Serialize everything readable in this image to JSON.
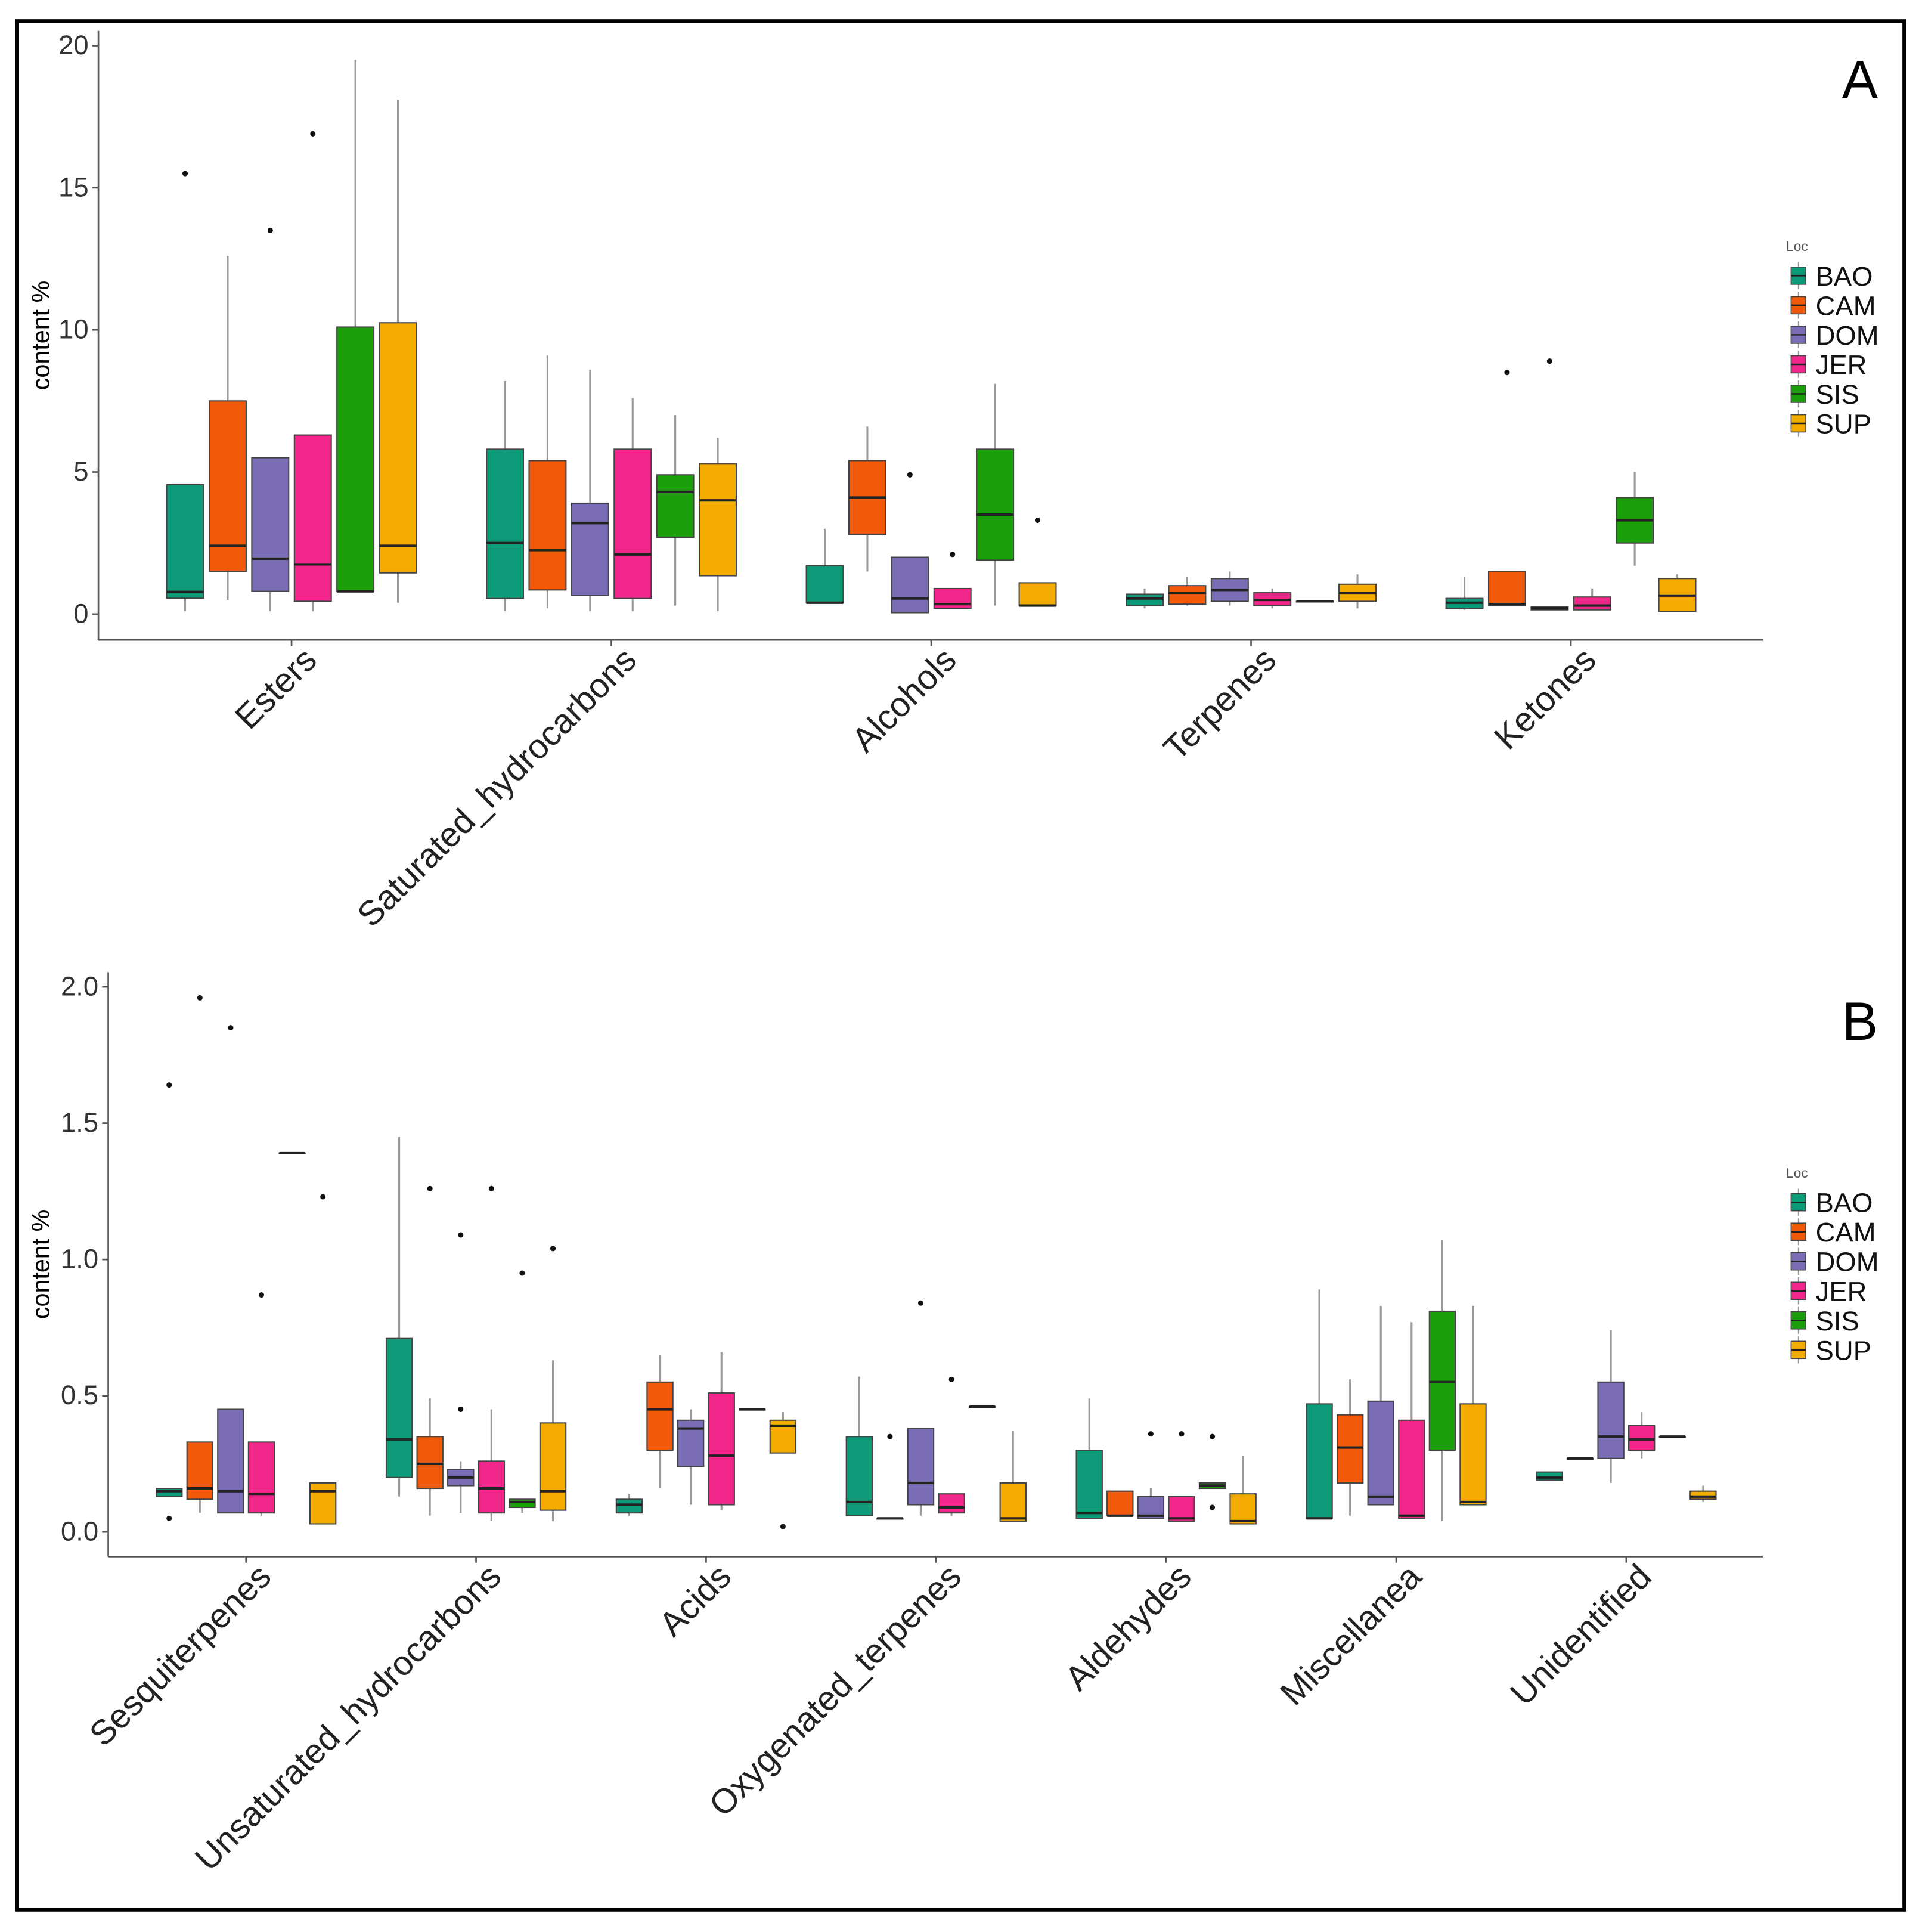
{
  "colors": {
    "BAO": "#0d9a78",
    "CAM": "#f05a0a",
    "DOM": "#7b6db5",
    "JER": "#f0268a",
    "SIS": "#1a9e0a",
    "SUP": "#f5ac00"
  },
  "chart_data": [
    {
      "type": "box",
      "panel_label": "A",
      "ylabel": "content %",
      "ylim": [
        0,
        20
      ],
      "yticks": [
        0,
        5,
        10,
        15,
        20
      ],
      "legend": {
        "title": "Loc",
        "position": "right",
        "entries": [
          "BAO",
          "CAM",
          "DOM",
          "JER",
          "SIS",
          "SUP"
        ]
      },
      "categories": [
        "Esters",
        "Saturated_hydrocarbons",
        "Alcohols",
        "Terpenes",
        "Ketones"
      ],
      "boxes": {
        "Esters": [
          [
            0.1,
            0.56,
            0.78,
            4.55,
            4.55,
            [
              15.5
            ]
          ],
          [
            0.5,
            1.5,
            2.4,
            7.5,
            12.6,
            []
          ],
          [
            0.1,
            0.8,
            1.95,
            5.5,
            5.5,
            [
              13.5
            ]
          ],
          [
            0.1,
            0.45,
            1.75,
            6.3,
            6.3,
            [
              16.9
            ]
          ],
          [
            0.8,
            0.8,
            0.8,
            10.1,
            19.5,
            []
          ],
          [
            0.4,
            1.45,
            2.4,
            10.25,
            18.1,
            []
          ]
        ],
        "Saturated_hydrocarbons": [
          [
            0.1,
            0.55,
            2.5,
            5.8,
            8.2,
            []
          ],
          [
            0.2,
            0.85,
            2.25,
            5.4,
            9.1,
            []
          ],
          [
            0.1,
            0.65,
            3.2,
            3.9,
            8.6,
            []
          ],
          [
            0.1,
            0.55,
            2.1,
            5.8,
            7.6,
            []
          ],
          [
            0.3,
            2.7,
            4.3,
            4.9,
            7.0,
            []
          ],
          [
            0.1,
            1.35,
            4.0,
            5.3,
            6.2,
            []
          ]
        ],
        "Alcohols": [
          [
            0.4,
            0.4,
            0.4,
            1.7,
            3.0,
            []
          ],
          [
            1.5,
            2.8,
            4.1,
            5.4,
            6.6,
            []
          ],
          [
            0.05,
            0.05,
            0.55,
            2.0,
            2.0,
            [
              4.9
            ]
          ],
          [
            0.2,
            0.2,
            0.35,
            0.9,
            0.9,
            [
              2.1
            ]
          ],
          [
            0.3,
            1.9,
            3.5,
            5.8,
            8.1,
            []
          ],
          [
            0.3,
            0.3,
            0.3,
            1.1,
            1.1,
            [
              3.3
            ]
          ]
        ],
        "Terpenes": [
          [
            0.2,
            0.3,
            0.55,
            0.7,
            0.9,
            []
          ],
          [
            0.3,
            0.35,
            0.75,
            1.0,
            1.3,
            []
          ],
          [
            0.3,
            0.45,
            0.85,
            1.25,
            1.5,
            []
          ],
          [
            0.2,
            0.3,
            0.5,
            0.75,
            0.9,
            []
          ],
          [
            0.45,
            0.45,
            0.45,
            0.45,
            0.45,
            []
          ],
          [
            0.2,
            0.45,
            0.75,
            1.05,
            1.4,
            []
          ]
        ],
        "Ketones": [
          [
            0.15,
            0.2,
            0.4,
            0.55,
            1.3,
            []
          ],
          [
            0.3,
            0.3,
            0.35,
            1.5,
            1.5,
            [
              8.5
            ]
          ],
          [
            0.15,
            0.15,
            0.2,
            0.25,
            0.25,
            [
              8.9
            ]
          ],
          [
            0.15,
            0.15,
            0.3,
            0.6,
            0.9,
            []
          ],
          [
            1.7,
            2.5,
            3.3,
            4.1,
            5.0,
            []
          ],
          [
            0.1,
            0.1,
            0.65,
            1.25,
            1.4,
            []
          ]
        ]
      }
    },
    {
      "type": "box",
      "panel_label": "B",
      "ylabel": "content %",
      "ylim": [
        0,
        2.0
      ],
      "yticks": [
        "0.0",
        "0.5",
        "1.0",
        "1.5",
        "2.0"
      ],
      "legend": {
        "title": "Loc",
        "position": "right",
        "entries": [
          "BAO",
          "CAM",
          "DOM",
          "JER",
          "SIS",
          "SUP"
        ]
      },
      "categories": [
        "Sesquiterpenes",
        "Unsaturated_hydrocarbons",
        "Acids",
        "Oxygenated_terpenes",
        "Aldehydes",
        "Miscellanea",
        "Unidentified"
      ],
      "boxes": {
        "Sesquiterpenes": [
          [
            0.13,
            0.13,
            0.15,
            0.16,
            0.16,
            [
              1.64,
              0.05
            ]
          ],
          [
            0.07,
            0.12,
            0.16,
            0.33,
            0.33,
            [
              1.96
            ]
          ],
          [
            0.07,
            0.07,
            0.15,
            0.45,
            0.45,
            [
              1.85
            ]
          ],
          [
            0.06,
            0.07,
            0.14,
            0.33,
            0.33,
            [
              0.87
            ]
          ],
          [
            1.39,
            1.39,
            1.39,
            1.39,
            1.39,
            []
          ],
          [
            0.03,
            0.03,
            0.15,
            0.18,
            0.18,
            [
              1.23
            ]
          ]
        ],
        "Unsaturated_hydrocarbons": [
          [
            0.13,
            0.2,
            0.34,
            0.71,
            1.45,
            []
          ],
          [
            0.06,
            0.16,
            0.25,
            0.35,
            0.49,
            [
              1.26
            ]
          ],
          [
            0.07,
            0.17,
            0.2,
            0.23,
            0.26,
            [
              1.09,
              0.45
            ]
          ],
          [
            0.04,
            0.07,
            0.16,
            0.26,
            0.45,
            [
              1.26
            ]
          ],
          [
            0.07,
            0.09,
            0.11,
            0.12,
            0.12,
            [
              0.95
            ]
          ],
          [
            0.04,
            0.08,
            0.15,
            0.4,
            0.63,
            [
              1.04
            ]
          ]
        ],
        "Acids": [
          [
            0.06,
            0.07,
            0.1,
            0.12,
            0.14,
            []
          ],
          [
            0.16,
            0.3,
            0.45,
            0.55,
            0.65,
            []
          ],
          [
            0.1,
            0.24,
            0.38,
            0.41,
            0.45,
            []
          ],
          [
            0.08,
            0.1,
            0.28,
            0.51,
            0.66,
            []
          ],
          [
            0.45,
            0.45,
            0.45,
            0.45,
            0.45,
            []
          ],
          [
            0.29,
            0.29,
            0.39,
            0.41,
            0.44,
            [
              0.02
            ]
          ]
        ],
        "Oxygenated_terpenes": [
          [
            0.06,
            0.06,
            0.11,
            0.35,
            0.57,
            []
          ],
          [
            0.05,
            0.05,
            0.05,
            0.05,
            0.05,
            [
              0.35
            ]
          ],
          [
            0.06,
            0.1,
            0.18,
            0.38,
            0.38,
            [
              0.84
            ]
          ],
          [
            0.06,
            0.07,
            0.09,
            0.14,
            0.14,
            [
              0.56
            ]
          ],
          [
            0.46,
            0.46,
            0.46,
            0.46,
            0.46,
            []
          ],
          [
            0.04,
            0.04,
            0.05,
            0.18,
            0.37,
            []
          ]
        ],
        "Aldehydes": [
          [
            0.05,
            0.05,
            0.07,
            0.3,
            0.49,
            []
          ],
          [
            0.06,
            0.06,
            0.06,
            0.15,
            0.15,
            []
          ],
          [
            0.05,
            0.05,
            0.06,
            0.13,
            0.16,
            [
              0.36
            ]
          ],
          [
            0.04,
            0.04,
            0.05,
            0.13,
            0.13,
            [
              0.36
            ]
          ],
          [
            0.16,
            0.16,
            0.17,
            0.18,
            0.18,
            [
              0.35,
              0.09
            ]
          ],
          [
            0.03,
            0.03,
            0.04,
            0.14,
            0.28,
            []
          ]
        ],
        "Miscellanea": [
          [
            0.05,
            0.05,
            0.05,
            0.47,
            0.89,
            []
          ],
          [
            0.06,
            0.18,
            0.31,
            0.43,
            0.56,
            []
          ],
          [
            0.1,
            0.1,
            0.13,
            0.48,
            0.83,
            []
          ],
          [
            0.05,
            0.05,
            0.06,
            0.41,
            0.77,
            []
          ],
          [
            0.04,
            0.3,
            0.55,
            0.81,
            1.07,
            []
          ],
          [
            0.1,
            0.1,
            0.11,
            0.47,
            0.83,
            []
          ]
        ],
        "Unidentified": [
          [
            0.19,
            0.19,
            0.2,
            0.22,
            0.22,
            []
          ],
          [
            0.27,
            0.27,
            0.27,
            0.27,
            0.27,
            []
          ],
          [
            0.18,
            0.27,
            0.35,
            0.55,
            0.74,
            []
          ],
          [
            0.27,
            0.3,
            0.34,
            0.39,
            0.44,
            []
          ],
          [
            0.35,
            0.35,
            0.35,
            0.35,
            0.35,
            []
          ],
          [
            0.11,
            0.12,
            0.13,
            0.15,
            0.17,
            []
          ]
        ]
      }
    }
  ]
}
